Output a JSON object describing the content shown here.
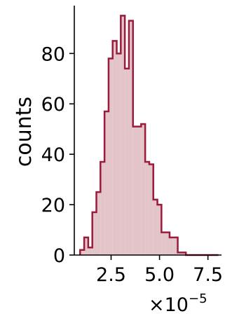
{
  "chart_data": {
    "type": "histogram",
    "title": "",
    "xlabel": "",
    "ylabel": "counts",
    "x_offset_text": "×10",
    "x_offset_exponent": "−5",
    "x_scale": 1e-05,
    "xlim": [
      0.6,
      8.2
    ],
    "ylim": [
      0,
      99
    ],
    "xticks": [
      2.5,
      5.0,
      7.5
    ],
    "xtick_labels": [
      "2.5",
      "5.0",
      "7.5"
    ],
    "yticks": [
      0,
      20,
      40,
      60,
      80
    ],
    "ytick_labels": [
      "0",
      "20",
      "40",
      "60",
      "80"
    ],
    "grid": false,
    "bin_edges": [
      0.9,
      1.11,
      1.32,
      1.53,
      1.74,
      1.95,
      2.16,
      2.37,
      2.58,
      2.79,
      3.0,
      3.21,
      3.42,
      3.63,
      3.84,
      4.05,
      4.26,
      4.47,
      4.68,
      4.89,
      5.1,
      5.31,
      5.52,
      5.73,
      5.94,
      6.15,
      6.36,
      6.57,
      6.78,
      6.99,
      7.2,
      7.41,
      7.62,
      7.83,
      8.04
    ],
    "counts": [
      2,
      7,
      3,
      17,
      25,
      37,
      57,
      78,
      85,
      80,
      95,
      74,
      93,
      51,
      51,
      52,
      37,
      36,
      22,
      20,
      9,
      9,
      7,
      7,
      1,
      1,
      0,
      0,
      0,
      0,
      0,
      0,
      0,
      0
    ],
    "fill_color": "#e3c4c8",
    "edge_color": "#9b1b3a"
  }
}
